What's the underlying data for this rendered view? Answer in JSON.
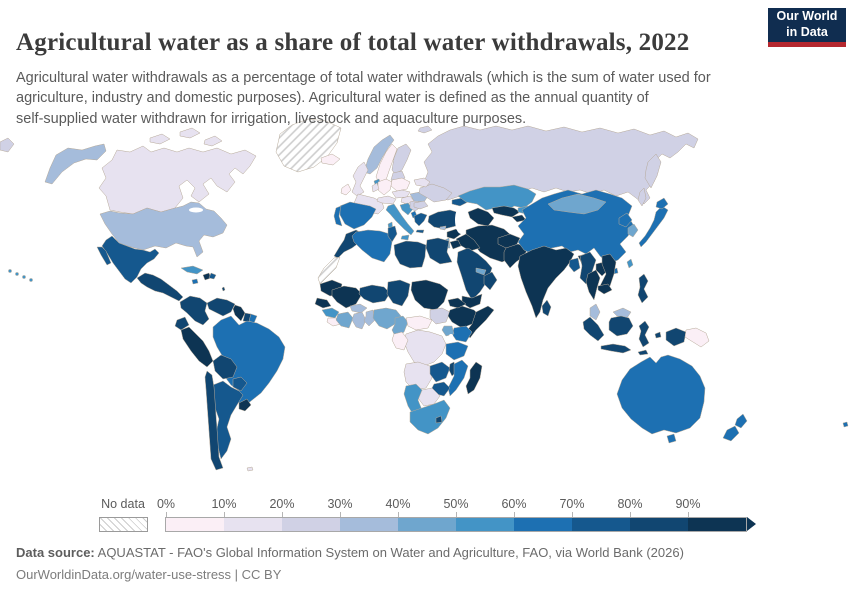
{
  "header": {
    "title": "Agricultural water as a share of total water withdrawals, 2022",
    "subtitle_lines": [
      "Agricultural water withdrawals as a percentage of total water withdrawals (which is the sum of water used for",
      "agriculture, industry and domestic purposes). Agricultural water is defined as the annual quantity of",
      "self-supplied water withdrawn for irrigation, livestock and aquaculture purposes."
    ],
    "logo": {
      "line1": "Our World",
      "line2": "in Data",
      "bg_color": "#102d50",
      "accent_color": "#b5282f"
    }
  },
  "legend": {
    "no_data_label": "No data",
    "ticks": [
      "0%",
      "10%",
      "20%",
      "30%",
      "40%",
      "50%",
      "60%",
      "70%",
      "80%",
      "90%"
    ],
    "bins": [
      {
        "id": "c0",
        "range": "0-10%",
        "color": "#fbeff6"
      },
      {
        "id": "c1",
        "range": "10-20%",
        "color": "#e7e2f0"
      },
      {
        "id": "c2",
        "range": "20-30%",
        "color": "#d0d1e5"
      },
      {
        "id": "c3",
        "range": "30-40%",
        "color": "#a5bcdb"
      },
      {
        "id": "c4",
        "range": "40-50%",
        "color": "#6fa6ce"
      },
      {
        "id": "c5",
        "range": "50-60%",
        "color": "#4394c6"
      },
      {
        "id": "c6",
        "range": "60-70%",
        "color": "#1d70b2"
      },
      {
        "id": "c7",
        "range": "70-80%",
        "color": "#15588e"
      },
      {
        "id": "c8",
        "range": "80-90%",
        "color": "#114671"
      },
      {
        "id": "c9",
        "range": "90-100%",
        "color": "#0d3453"
      },
      {
        "id": "no-data",
        "range": "No data",
        "color": "hatch"
      }
    ]
  },
  "footer": {
    "source_label": "Data source:",
    "source_text": " AQUASTAT - FAO's Global Information System on Water and Agriculture, FAO, via World Bank (2026)",
    "note": "OurWorldinData.org/water-use-stress | CC BY"
  },
  "chart_data": {
    "type": "heatmap",
    "subtype": "world-choropleth",
    "title": "Agricultural water as a share of total water withdrawals",
    "year": "2022",
    "unit": "% of total water withdrawals",
    "legend_position": "bottom",
    "regions": [
      {
        "name": "Canada",
        "bin": "c1",
        "value": "10-20%"
      },
      {
        "name": "United States",
        "bin": "c3",
        "value": "30-40%"
      },
      {
        "name": "Hawaii",
        "bin": "c5",
        "value": "50-60%"
      },
      {
        "name": "Greenland",
        "bin": "no-data",
        "value": "No data"
      },
      {
        "name": "Iceland",
        "bin": "c0",
        "value": "0-10%"
      },
      {
        "name": "Mexico",
        "bin": "c7",
        "value": "70-80%"
      },
      {
        "name": "Central America",
        "bin": "c8",
        "value": "80-90%"
      },
      {
        "name": "Cuba",
        "bin": "c5",
        "value": "50-60%"
      },
      {
        "name": "Haiti",
        "bin": "c9",
        "value": "90-100%"
      },
      {
        "name": "Dominican Republic",
        "bin": "c7",
        "value": "70-80%"
      },
      {
        "name": "Jamaica",
        "bin": "c6",
        "value": "60-70%"
      },
      {
        "name": "Lesser Antilles",
        "bin": "c8",
        "value": "80-90%"
      },
      {
        "name": "Falkland Islands",
        "bin": "c1",
        "value": "10-20%"
      },
      {
        "name": "Colombia",
        "bin": "c8",
        "value": "80-90%"
      },
      {
        "name": "Venezuela",
        "bin": "c8",
        "value": "80-90%"
      },
      {
        "name": "Guyana",
        "bin": "c9",
        "value": "90-100%"
      },
      {
        "name": "Suriname",
        "bin": "c8",
        "value": "80-90%"
      },
      {
        "name": "French Guiana",
        "bin": "c6",
        "value": "60-70%"
      },
      {
        "name": "Brazil",
        "bin": "c6",
        "value": "60-70%"
      },
      {
        "name": "Ecuador",
        "bin": "c8",
        "value": "80-90%"
      },
      {
        "name": "Peru",
        "bin": "c9",
        "value": "90-100%"
      },
      {
        "name": "Bolivia",
        "bin": "c8",
        "value": "80-90%"
      },
      {
        "name": "Paraguay",
        "bin": "c7",
        "value": "70-80%"
      },
      {
        "name": "Chile",
        "bin": "c8",
        "value": "80-90%"
      },
      {
        "name": "Argentina",
        "bin": "c7",
        "value": "70-80%"
      },
      {
        "name": "Uruguay",
        "bin": "c9",
        "value": "90-100%"
      },
      {
        "name": "Norway",
        "bin": "c3",
        "value": "30-40%"
      },
      {
        "name": "Sweden",
        "bin": "c0",
        "value": "0-10%"
      },
      {
        "name": "Finland",
        "bin": "c2",
        "value": "20-30%"
      },
      {
        "name": "Denmark",
        "bin": "c5",
        "value": "50-60%"
      },
      {
        "name": "Baltic states",
        "bin": "c2",
        "value": "20-30%"
      },
      {
        "name": "United Kingdom",
        "bin": "c1",
        "value": "10-20%"
      },
      {
        "name": "Ireland",
        "bin": "c0",
        "value": "0-10%"
      },
      {
        "name": "France",
        "bin": "c1",
        "value": "10-20%"
      },
      {
        "name": "Germany",
        "bin": "c0",
        "value": "0-10%"
      },
      {
        "name": "Benelux",
        "bin": "c1",
        "value": "10-20%"
      },
      {
        "name": "Poland",
        "bin": "c0",
        "value": "0-10%"
      },
      {
        "name": "Czechia & Slovakia",
        "bin": "c1",
        "value": "10-20%"
      },
      {
        "name": "Austria & Switzerland",
        "bin": "c1",
        "value": "10-20%"
      },
      {
        "name": "Hungary",
        "bin": "c1",
        "value": "10-20%"
      },
      {
        "name": "Croatia & Slovenia",
        "bin": "c5",
        "value": "50-60%"
      },
      {
        "name": "Serbia & Bosnia",
        "bin": "c2",
        "value": "20-30%"
      },
      {
        "name": "Albania",
        "bin": "c6",
        "value": "60-70%"
      },
      {
        "name": "Greece",
        "bin": "c7",
        "value": "70-80%"
      },
      {
        "name": "Romania",
        "bin": "c3",
        "value": "30-40%"
      },
      {
        "name": "Bulgaria",
        "bin": "c2",
        "value": "20-30%"
      },
      {
        "name": "Ukraine",
        "bin": "c2",
        "value": "20-30%"
      },
      {
        "name": "Belarus",
        "bin": "c1",
        "value": "10-20%"
      },
      {
        "name": "Spain",
        "bin": "c6",
        "value": "60-70%"
      },
      {
        "name": "Portugal",
        "bin": "c6",
        "value": "60-70%"
      },
      {
        "name": "Italy",
        "bin": "c5",
        "value": "50-60%"
      },
      {
        "name": "Svalbard",
        "bin": "c2",
        "value": "20-30%"
      },
      {
        "name": "Russia",
        "bin": "c2",
        "value": "20-30%"
      },
      {
        "name": "Turkey",
        "bin": "c8",
        "value": "80-90%"
      },
      {
        "name": "Cyprus",
        "bin": "c3",
        "value": "30-40%"
      },
      {
        "name": "Caucasus",
        "bin": "c7",
        "value": "70-80%"
      },
      {
        "name": "Kazakhstan",
        "bin": "c5",
        "value": "50-60%"
      },
      {
        "name": "Uzbekistan",
        "bin": "c9",
        "value": "90-100%"
      },
      {
        "name": "Turkmenistan",
        "bin": "c9",
        "value": "90-100%"
      },
      {
        "name": "Kyrgyzstan",
        "bin": "c5",
        "value": "50-60%"
      },
      {
        "name": "Tajikistan",
        "bin": "c9",
        "value": "90-100%"
      },
      {
        "name": "Iran",
        "bin": "c9",
        "value": "90-100%"
      },
      {
        "name": "Iraq",
        "bin": "c9",
        "value": "90-100%"
      },
      {
        "name": "Syria",
        "bin": "c9",
        "value": "90-100%"
      },
      {
        "name": "Israel & Lebanon",
        "bin": "c4",
        "value": "40-50%"
      },
      {
        "name": "Jordan",
        "bin": "c9",
        "value": "90-100%"
      },
      {
        "name": "Saudi Arabia",
        "bin": "c8",
        "value": "80-90%"
      },
      {
        "name": "Yemen",
        "bin": "c9",
        "value": "90-100%"
      },
      {
        "name": "Oman",
        "bin": "c8",
        "value": "80-90%"
      },
      {
        "name": "UAE & Qatar",
        "bin": "c4",
        "value": "40-50%"
      },
      {
        "name": "Morocco",
        "bin": "c8",
        "value": "80-90%"
      },
      {
        "name": "Western Sahara",
        "bin": "no-data",
        "value": "No data"
      },
      {
        "name": "Algeria",
        "bin": "c6",
        "value": "60-70%"
      },
      {
        "name": "Tunisia",
        "bin": "c7",
        "value": "70-80%"
      },
      {
        "name": "Libya",
        "bin": "c8",
        "value": "80-90%"
      },
      {
        "name": "Egypt",
        "bin": "c8",
        "value": "80-90%"
      },
      {
        "name": "Mauritania",
        "bin": "c9",
        "value": "90-100%"
      },
      {
        "name": "Mali",
        "bin": "c9",
        "value": "90-100%"
      },
      {
        "name": "Niger",
        "bin": "c8",
        "value": "80-90%"
      },
      {
        "name": "Chad",
        "bin": "c8",
        "value": "80-90%"
      },
      {
        "name": "Sudan",
        "bin": "c9",
        "value": "90-100%"
      },
      {
        "name": "South Sudan",
        "bin": "c2",
        "value": "20-30%"
      },
      {
        "name": "Senegal",
        "bin": "c9",
        "value": "90-100%"
      },
      {
        "name": "Guinea",
        "bin": "c5",
        "value": "50-60%"
      },
      {
        "name": "Sierra Leone & Liberia",
        "bin": "c0",
        "value": "0-10%"
      },
      {
        "name": "Côte d'Ivoire",
        "bin": "c4",
        "value": "40-50%"
      },
      {
        "name": "Burkina Faso",
        "bin": "c3",
        "value": "30-40%"
      },
      {
        "name": "Ghana",
        "bin": "c3",
        "value": "30-40%"
      },
      {
        "name": "Togo & Benin",
        "bin": "c3",
        "value": "30-40%"
      },
      {
        "name": "Nigeria",
        "bin": "c4",
        "value": "40-50%"
      },
      {
        "name": "Cameroon",
        "bin": "c4",
        "value": "40-50%"
      },
      {
        "name": "Central African Republic",
        "bin": "c0",
        "value": "0-10%"
      },
      {
        "name": "Ethiopia",
        "bin": "c9",
        "value": "90-100%"
      },
      {
        "name": "Eritrea & Djibouti",
        "bin": "c9",
        "value": "90-100%"
      },
      {
        "name": "Somalia",
        "bin": "c9",
        "value": "90-100%"
      },
      {
        "name": "Kenya",
        "bin": "c6",
        "value": "60-70%"
      },
      {
        "name": "Uganda",
        "bin": "c4",
        "value": "40-50%"
      },
      {
        "name": "DR Congo",
        "bin": "c1",
        "value": "10-20%"
      },
      {
        "name": "Congo & Gabon",
        "bin": "c0",
        "value": "0-10%"
      },
      {
        "name": "Tanzania",
        "bin": "c6",
        "value": "60-70%"
      },
      {
        "name": "Angola",
        "bin": "c1",
        "value": "10-20%"
      },
      {
        "name": "Zambia",
        "bin": "c7",
        "value": "70-80%"
      },
      {
        "name": "Malawi",
        "bin": "c8",
        "value": "80-90%"
      },
      {
        "name": "Mozambique",
        "bin": "c6",
        "value": "60-70%"
      },
      {
        "name": "Zimbabwe",
        "bin": "c7",
        "value": "70-80%"
      },
      {
        "name": "Botswana",
        "bin": "c1",
        "value": "10-20%"
      },
      {
        "name": "Namibia",
        "bin": "c5",
        "value": "50-60%"
      },
      {
        "name": "South Africa",
        "bin": "c5",
        "value": "50-60%"
      },
      {
        "name": "Lesotho",
        "bin": "c8",
        "value": "80-90%"
      },
      {
        "name": "Madagascar",
        "bin": "c9",
        "value": "90-100%"
      },
      {
        "name": "Afghanistan",
        "bin": "c9",
        "value": "90-100%"
      },
      {
        "name": "Pakistan",
        "bin": "c9",
        "value": "90-100%"
      },
      {
        "name": "India",
        "bin": "c9",
        "value": "90-100%"
      },
      {
        "name": "Bangladesh",
        "bin": "c7",
        "value": "70-80%"
      },
      {
        "name": "Sri Lanka",
        "bin": "c8",
        "value": "80-90%"
      },
      {
        "name": "Myanmar",
        "bin": "c8",
        "value": "80-90%"
      },
      {
        "name": "Thailand",
        "bin": "c9",
        "value": "90-100%"
      },
      {
        "name": "Laos",
        "bin": "c9",
        "value": "90-100%"
      },
      {
        "name": "Vietnam",
        "bin": "c9",
        "value": "90-100%"
      },
      {
        "name": "Cambodia",
        "bin": "c9",
        "value": "90-100%"
      },
      {
        "name": "Malaysia",
        "bin": "c3",
        "value": "30-40%"
      },
      {
        "name": "China",
        "bin": "c6",
        "value": "60-70%"
      },
      {
        "name": "Mongolia",
        "bin": "c4",
        "value": "40-50%"
      },
      {
        "name": "North Korea",
        "bin": "c6",
        "value": "60-70%"
      },
      {
        "name": "South Korea",
        "bin": "c4",
        "value": "40-50%"
      },
      {
        "name": "Japan",
        "bin": "c6",
        "value": "60-70%"
      },
      {
        "name": "Taiwan",
        "bin": "c5",
        "value": "50-60%"
      },
      {
        "name": "Philippines",
        "bin": "c8",
        "value": "80-90%"
      },
      {
        "name": "Indonesia",
        "bin": "c8",
        "value": "80-90%"
      },
      {
        "name": "Papua New Guinea",
        "bin": "c0",
        "value": "0-10%"
      },
      {
        "name": "Australia",
        "bin": "c6",
        "value": "60-70%"
      },
      {
        "name": "New Zealand",
        "bin": "c6",
        "value": "60-70%"
      },
      {
        "name": "Fiji",
        "bin": "c6",
        "value": "60-70%"
      }
    ]
  }
}
